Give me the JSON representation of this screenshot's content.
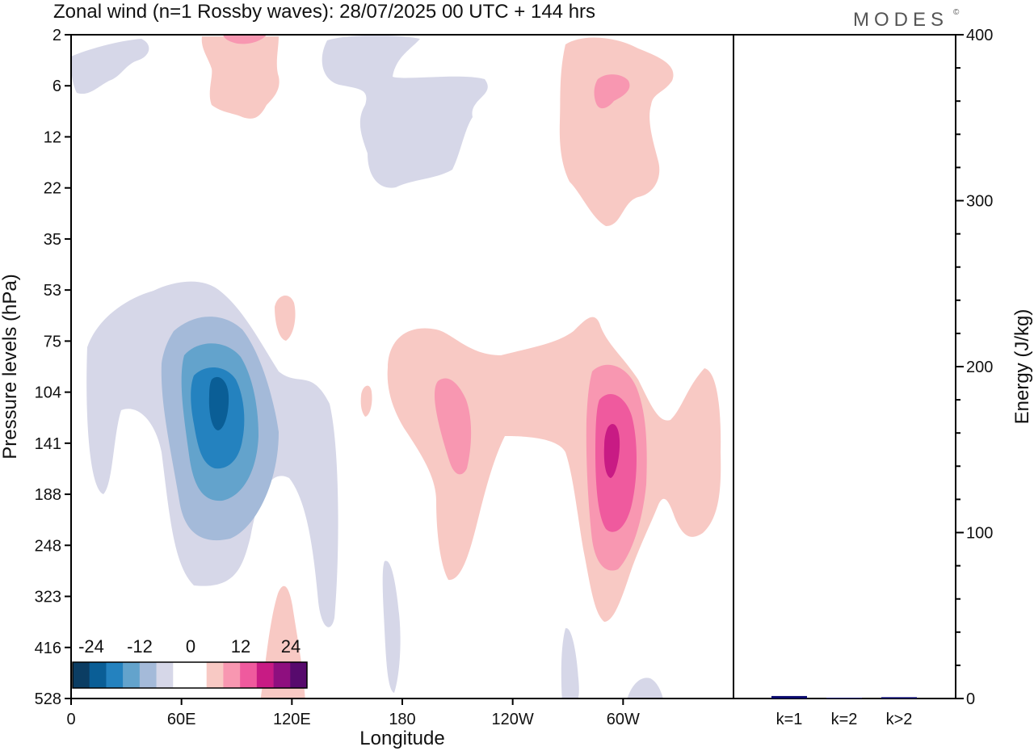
{
  "title": "Zonal wind (n=1 Rossby waves):  28/07/2025  00 UTC  + 144 hrs",
  "brand": "MODES",
  "brand_mark": "©",
  "colors": {
    "neg4": "#0b3d63",
    "neg3": "#0a5e96",
    "neg2": "#2482bf",
    "neg1a": "#63a3cc",
    "neg1": "#a4bad9",
    "neg0": "#d6d7e8",
    "pos0": "#f8c9c4",
    "pos1": "#f897b1",
    "pos2": "#ef5a9e",
    "pos3": "#c81b84",
    "pos4": "#8e0f7f",
    "pos5": "#570a6d",
    "bar": "#0a0a6e"
  },
  "chart_data": [
    {
      "type": "contour",
      "title": "Zonal wind (n=1 Rossby waves):  28/07/2025  00 UTC  + 144 hrs",
      "xlabel": "Longitude",
      "ylabel": "Pressure levels (hPa)",
      "x_ticks": [
        "0",
        "60E",
        "120E",
        "180",
        "120W",
        "60W"
      ],
      "x_range_deg": [
        0,
        360
      ],
      "y_ticks": [
        "2",
        "6",
        "12",
        "22",
        "35",
        "53",
        "75",
        "104",
        "141",
        "188",
        "248",
        "323",
        "416",
        "528"
      ],
      "colorbar_labels": [
        "-24",
        "-12",
        "0",
        "12",
        "24"
      ],
      "contour_levels": [
        -24,
        -18,
        -12,
        -6,
        -3,
        0,
        3,
        6,
        12,
        18,
        24
      ],
      "features": [
        {
          "sign": "negative",
          "center_lon_deg": 78,
          "center_hPa": 115,
          "min_value": -24,
          "description": "strong easterly core"
        },
        {
          "sign": "positive",
          "center_lon_deg": 295,
          "center_hPa": 140,
          "max_value": 21,
          "description": "westerly core"
        },
        {
          "sign": "positive",
          "center_lon_deg": 200,
          "center_hPa": 125,
          "max_value": 8
        },
        {
          "sign": "negative",
          "center_lon_deg": 165,
          "center_hPa": 8,
          "min_value": -4
        },
        {
          "sign": "positive",
          "center_lon_deg": 290,
          "center_hPa": 8,
          "max_value": 7
        },
        {
          "sign": "positive",
          "center_lon_deg": 100,
          "center_hPa": 5,
          "max_value": 6
        }
      ]
    },
    {
      "type": "bar",
      "ylabel": "Energy (J/kg)",
      "ylim": [
        0,
        400
      ],
      "y_ticks": [
        "0",
        "100",
        "200",
        "300",
        "400"
      ],
      "categories": [
        "k=1",
        "k=2",
        "k>2"
      ],
      "values": [
        1.5,
        0.3,
        0.8
      ]
    }
  ]
}
